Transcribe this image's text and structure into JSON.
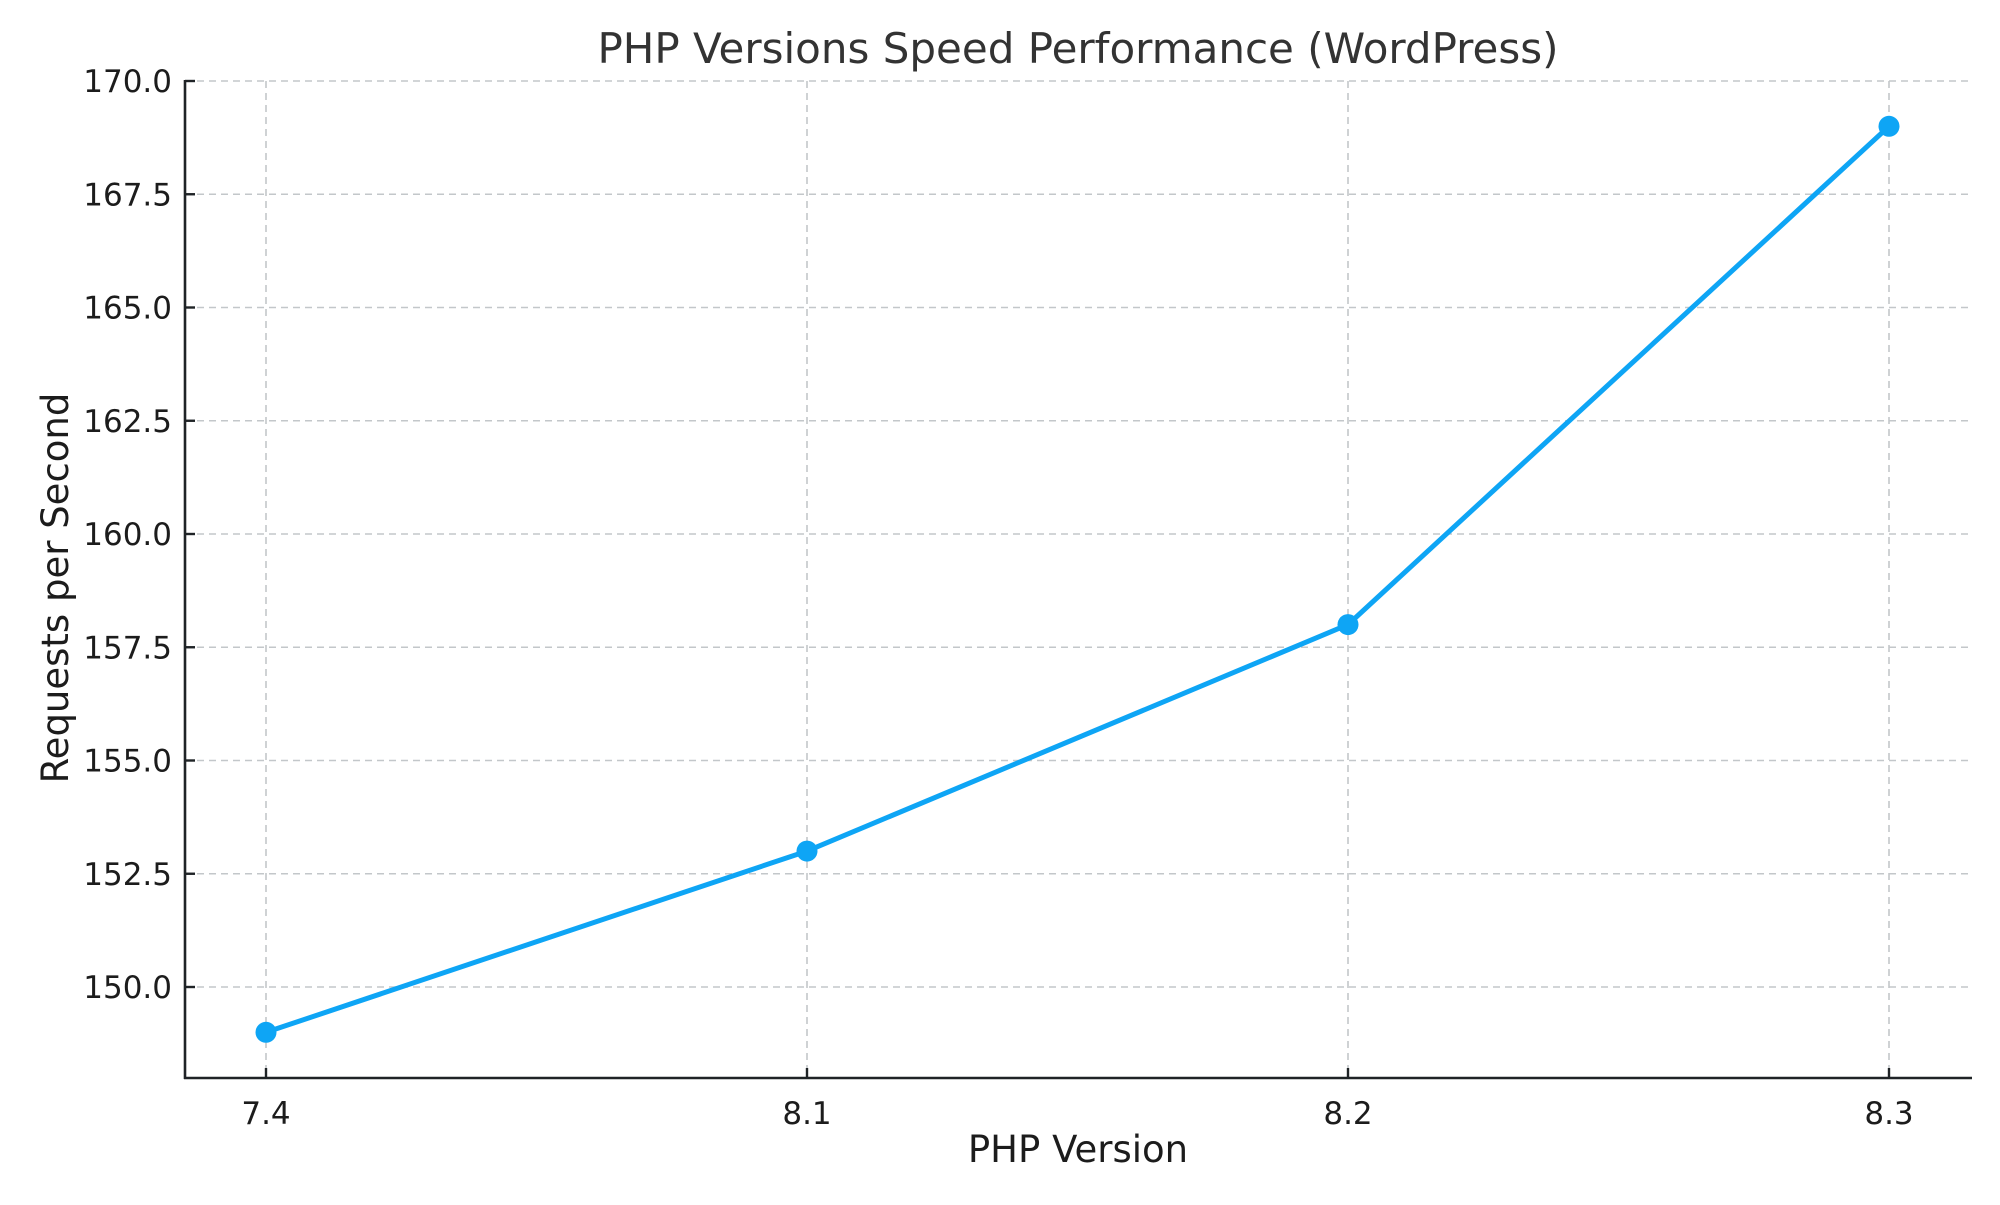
{
  "chart_data": {
    "type": "line",
    "title": "PHP Versions Speed Performance (WordPress)",
    "xlabel": "PHP Version",
    "ylabel": "Requests per Second",
    "categories": [
      "7.4",
      "8.1",
      "8.2",
      "8.3"
    ],
    "series": [
      {
        "name": "Requests per Second",
        "values": [
          149,
          153,
          158,
          169
        ],
        "color": "#0EA5F5",
        "marker": "circle"
      }
    ],
    "yticks": [
      "150.0",
      "152.5",
      "155.0",
      "157.5",
      "160.0",
      "162.5",
      "165.0",
      "167.5",
      "170.0"
    ],
    "ylim": [
      148,
      170
    ],
    "grid": true,
    "legend": null
  }
}
